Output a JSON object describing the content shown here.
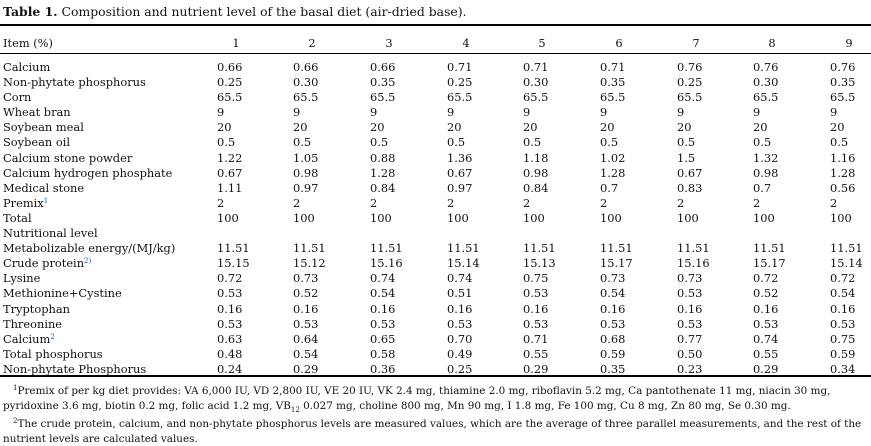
{
  "table": {
    "label": "Table 1.",
    "title": "Composition and nutrient level of the basal diet (air-dried base).",
    "item_header": "Item (%)",
    "diet_numbers": [
      "1",
      "2",
      "3",
      "4",
      "5",
      "6",
      "7",
      "8",
      "9"
    ],
    "rows": [
      {
        "item": "Calcium",
        "values": [
          "0.66",
          "0.66",
          "0.66",
          "0.71",
          "0.71",
          "0.71",
          "0.76",
          "0.76",
          "0.76"
        ]
      },
      {
        "item": "Non-phytate phosphorus",
        "values": [
          "0.25",
          "0.30",
          "0.35",
          "0.25",
          "0.30",
          "0.35",
          "0.25",
          "0.30",
          "0.35"
        ]
      },
      {
        "item": "Corn",
        "values": [
          "65.5",
          "65.5",
          "65.5",
          "65.5",
          "65.5",
          "65.5",
          "65.5",
          "65.5",
          "65.5"
        ]
      },
      {
        "item": "Wheat bran",
        "values": [
          "9",
          "9",
          "9",
          "9",
          "9",
          "9",
          "9",
          "9",
          "9"
        ]
      },
      {
        "item": "Soybean meal",
        "values": [
          "20",
          "20",
          "20",
          "20",
          "20",
          "20",
          "20",
          "20",
          "20"
        ]
      },
      {
        "item": "Soybean oil",
        "values": [
          "0.5",
          "0.5",
          "0.5",
          "0.5",
          "0.5",
          "0.5",
          "0.5",
          "0.5",
          "0.5"
        ]
      },
      {
        "item": "Calcium stone powder",
        "values": [
          "1.22",
          "1.05",
          "0.88",
          "1.36",
          "1.18",
          "1.02",
          "1.5",
          "1.32",
          "1.16"
        ]
      },
      {
        "item": "Calcium hydrogen phosphate",
        "values": [
          "0.67",
          "0.98",
          "1.28",
          "0.67",
          "0.98",
          "1.28",
          "0.67",
          "0.98",
          "1.28"
        ]
      },
      {
        "item": "Medical stone",
        "values": [
          "1.11",
          "0.97",
          "0.84",
          "0.97",
          "0.84",
          "0.7",
          "0.83",
          "0.7",
          "0.56"
        ]
      },
      {
        "item": "Premix",
        "sup": "1",
        "values": [
          "2",
          "2",
          "2",
          "2",
          "2",
          "2",
          "2",
          "2",
          "2"
        ]
      },
      {
        "item": "Total",
        "values": [
          "100",
          "100",
          "100",
          "100",
          "100",
          "100",
          "100",
          "100",
          "100"
        ]
      },
      {
        "item": "Nutritional level",
        "values": []
      },
      {
        "item": "Metabolizable energy/(MJ/kg)",
        "values": [
          "11.51",
          "11.51",
          "11.51",
          "11.51",
          "11.51",
          "11.51",
          "11.51",
          "11.51",
          "11.51"
        ]
      },
      {
        "item": "Crude protein",
        "sup": "2)",
        "values": [
          "15.15",
          "15.12",
          "15.16",
          "15.14",
          "15.13",
          "15.17",
          "15.16",
          "15.17",
          "15.14"
        ]
      },
      {
        "item": "Lysine",
        "values": [
          "0.72",
          "0.73",
          "0.74",
          "0.74",
          "0.75",
          "0.73",
          "0.73",
          "0.72",
          "0.72"
        ]
      },
      {
        "item": "Methionine+Cystine",
        "values": [
          "0.53",
          "0.52",
          "0.54",
          "0.51",
          "0.53",
          "0.54",
          "0.53",
          "0.52",
          "0.54"
        ]
      },
      {
        "item": "Tryptophan",
        "values": [
          "0.16",
          "0.16",
          "0.16",
          "0.16",
          "0.16",
          "0.16",
          "0.16",
          "0.16",
          "0.16"
        ]
      },
      {
        "item": "Threonine",
        "values": [
          "0.53",
          "0.53",
          "0.53",
          "0.53",
          "0.53",
          "0.53",
          "0.53",
          "0.53",
          "0.53"
        ]
      },
      {
        "item": "Calcium",
        "sup": "2",
        "values": [
          "0.63",
          "0.64",
          "0.65",
          "0.70",
          "0.71",
          "0.68",
          "0.77",
          "0.74",
          "0.75"
        ]
      },
      {
        "item": "Total phosphorus",
        "values": [
          "0.48",
          "0.54",
          "0.58",
          "0.49",
          "0.55",
          "0.59",
          "0.50",
          "0.55",
          "0.59"
        ]
      },
      {
        "item": "Non-phytate Phosphorus",
        "values": [
          "0.24",
          "0.29",
          "0.36",
          "0.25",
          "0.29",
          "0.35",
          "0.23",
          "0.29",
          "0.34"
        ]
      }
    ]
  },
  "footnotes": {
    "note1_mark": "1",
    "note1_text_a": "Premix of per kg diet provides: VA 6,000 IU, VD 2,800 IU, VE 20 IU, VK 2.4 mg, thiamine 2.0 mg, riboflavin 5.2 mg, Ca pantothenate 11 mg, niacin 30 mg, pyridoxine 3.6 mg, biotin 0.2 mg, folic acid 1.2 mg, VB",
    "note1_sub": "12",
    "note1_text_b": " 0.027 mg, choline 800 mg, Mn 90 mg, I 1.8 mg, Fe 100 mg, Cu 8 mg, Zn 80 mg, Se 0.30 mg.",
    "note2_mark": "2",
    "note2_text": "The crude protein, calcium, and non-phytate phosphorus levels are measured values, which are the average of three parallel measurements, and the rest of the nutrient levels are calculated values."
  }
}
